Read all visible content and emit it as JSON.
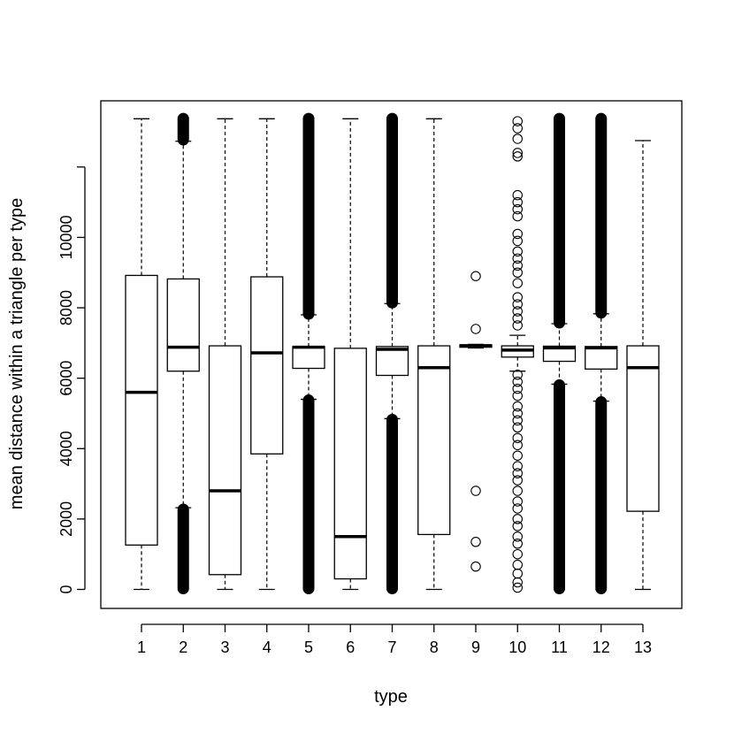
{
  "chart_data": {
    "type": "boxplot",
    "title": "",
    "xlabel": "type",
    "ylabel": "mean distance within a triangle per type",
    "categories": [
      "1",
      "2",
      "3",
      "4",
      "5",
      "6",
      "7",
      "8",
      "9",
      "10",
      "11",
      "12",
      "13"
    ],
    "yticks": [
      0,
      2000,
      4000,
      6000,
      8000,
      10000
    ],
    "ytick_labels": [
      "0",
      "2000",
      "4000",
      "6000",
      "8000",
      "10000"
    ],
    "extra_y_ticks": [
      12000
    ],
    "ylim": [
      -540,
      13880
    ],
    "grid": false,
    "legend": "none",
    "boxes": [
      {
        "category": "1",
        "lower_whisker": 0,
        "q1": 1260,
        "median": 5600,
        "q3": 8920,
        "upper_whisker": 13370,
        "outliers": []
      },
      {
        "category": "2",
        "lower_whisker": 2320,
        "q1": 6200,
        "median": 6880,
        "q3": 8820,
        "upper_whisker": 12730,
        "outlier_bands": [
          [
            0,
            2300
          ],
          [
            12750,
            13400
          ]
        ],
        "outliers": []
      },
      {
        "category": "3",
        "lower_whisker": 0,
        "q1": 420,
        "median": 2800,
        "q3": 6920,
        "upper_whisker": 13370,
        "outliers": []
      },
      {
        "category": "4",
        "lower_whisker": 0,
        "q1": 3850,
        "median": 6720,
        "q3": 8880,
        "upper_whisker": 13370,
        "outliers": []
      },
      {
        "category": "5",
        "lower_whisker": 5400,
        "q1": 6280,
        "median": 6880,
        "q3": 6900,
        "upper_whisker": 7800,
        "outlier_bands": [
          [
            0,
            5400
          ],
          [
            7800,
            13400
          ]
        ],
        "outliers": []
      },
      {
        "category": "6",
        "lower_whisker": 0,
        "q1": 300,
        "median": 1500,
        "q3": 6850,
        "upper_whisker": 13370,
        "outliers": []
      },
      {
        "category": "7",
        "lower_whisker": 4850,
        "q1": 6080,
        "median": 6820,
        "q3": 6900,
        "upper_whisker": 8120,
        "outlier_bands": [
          [
            0,
            4850
          ],
          [
            8120,
            13400
          ]
        ],
        "outliers": []
      },
      {
        "category": "8",
        "lower_whisker": 0,
        "q1": 1560,
        "median": 6300,
        "q3": 6920,
        "upper_whisker": 13370,
        "outliers": []
      },
      {
        "category": "9",
        "lower_whisker": 6860,
        "q1": 6880,
        "median": 6920,
        "q3": 6950,
        "upper_whisker": 6960,
        "outliers": [
          8900,
          7400,
          2800,
          1350,
          650
        ]
      },
      {
        "category": "10",
        "lower_whisker": 6200,
        "q1": 6600,
        "median": 6800,
        "q3": 6920,
        "upper_whisker": 7220,
        "outliers": [
          13300,
          13100,
          12800,
          12400,
          12300,
          11200,
          11000,
          10800,
          10600,
          10100,
          9900,
          9600,
          9400,
          9200,
          9000,
          8700,
          8300,
          8100,
          7900,
          7700,
          7500,
          6100,
          5900,
          5700,
          5500,
          5200,
          5000,
          4800,
          4600,
          4300,
          4100,
          3800,
          3500,
          3300,
          3100,
          2800,
          2500,
          2300,
          2000,
          1800,
          1500,
          1300,
          1000,
          700,
          450,
          200,
          50
        ]
      },
      {
        "category": "11",
        "lower_whisker": 5830,
        "q1": 6480,
        "median": 6860,
        "q3": 6910,
        "upper_whisker": 7550,
        "outlier_bands": [
          [
            0,
            5830
          ],
          [
            7550,
            13400
          ]
        ],
        "outliers": []
      },
      {
        "category": "12",
        "lower_whisker": 5350,
        "q1": 6260,
        "median": 6860,
        "q3": 6900,
        "upper_whisker": 7830,
        "outlier_bands": [
          [
            0,
            5350
          ],
          [
            7830,
            13400
          ]
        ],
        "outliers": [
          13350,
          13200,
          12900,
          12700,
          12400,
          12200,
          11300,
          11100,
          10900,
          10600,
          10300,
          10100,
          9800,
          9500,
          9200,
          8900,
          8500,
          8200,
          3700,
          3500,
          3300,
          2000,
          1800,
          1500,
          1200,
          900,
          600,
          300,
          50
        ]
      },
      {
        "category": "13",
        "lower_whisker": 0,
        "q1": 2220,
        "median": 6300,
        "q3": 6920,
        "upper_whisker": 12750,
        "outliers": []
      }
    ]
  }
}
